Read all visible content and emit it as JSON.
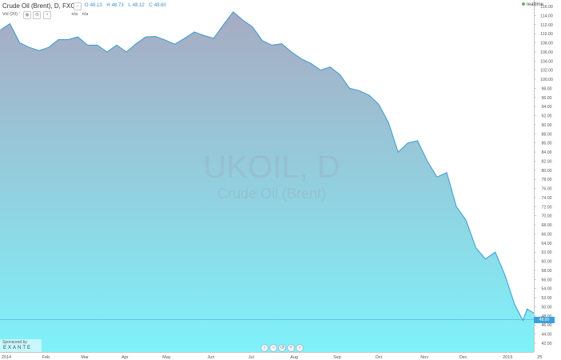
{
  "header": {
    "symbol_title": "Crude Oil (Brent), D, FXCM",
    "ohlc": [
      {
        "k": "O",
        "v": "48.13"
      },
      {
        "k": "H",
        "v": "48.73"
      },
      {
        "k": "L",
        "v": "48.12"
      },
      {
        "k": "C",
        "v": "48.60"
      }
    ],
    "volume_label": "Vol (20) ˇ",
    "volume_values": [
      "n/a",
      "n/a"
    ],
    "realtime_label": "realtime"
  },
  "watermark": {
    "symbol": "UKOIL, D",
    "name": "Crude Oil (Brent)"
  },
  "sponsor": {
    "line1": "Sponsored by",
    "line2": "EXANTE"
  },
  "zoom_controls": [
    "‹",
    "−",
    "↺",
    "+",
    "›"
  ],
  "last_price_label": "48.60",
  "colors": {
    "line": "#3a9ad1",
    "area_top": "#a7abc2",
    "area_bottom": "#7ff2fa",
    "last_price": "#3aa0da"
  },
  "chart_data": {
    "type": "area",
    "symbol": "UKOIL",
    "interval": "D",
    "x_ticks": [
      "2014",
      "Feb",
      "Mar",
      "Apr",
      "May",
      "Jun",
      "Jul",
      "Aug",
      "Sep",
      "Oct",
      "Nov",
      "Dec",
      "2015",
      "25"
    ],
    "y_ticks": [
      "42.00",
      "44.00",
      "46.00",
      "48.00",
      "50.00",
      "52.00",
      "54.00",
      "56.00",
      "58.00",
      "60.00",
      "62.00",
      "64.00",
      "66.00",
      "68.00",
      "70.00",
      "72.00",
      "74.00",
      "76.00",
      "78.00",
      "80.00",
      "82.00",
      "84.00",
      "86.00",
      "88.00",
      "90.00",
      "92.00",
      "94.00",
      "96.00",
      "98.00",
      "100.00",
      "102.00",
      "104.00",
      "106.00",
      "108.00",
      "110.00",
      "112.00",
      "114.00",
      "116.00"
    ],
    "ylim": [
      42,
      117
    ],
    "x": [
      "2014-01-02",
      "2014-01-08",
      "2014-01-15",
      "2014-01-22",
      "2014-01-29",
      "2014-02-05",
      "2014-02-12",
      "2014-02-19",
      "2014-02-26",
      "2014-03-05",
      "2014-03-12",
      "2014-03-19",
      "2014-03-26",
      "2014-04-02",
      "2014-04-09",
      "2014-04-16",
      "2014-04-23",
      "2014-04-30",
      "2014-05-07",
      "2014-05-14",
      "2014-05-21",
      "2014-05-28",
      "2014-06-04",
      "2014-06-11",
      "2014-06-18",
      "2014-06-25",
      "2014-07-02",
      "2014-07-09",
      "2014-07-16",
      "2014-07-23",
      "2014-07-30",
      "2014-08-06",
      "2014-08-13",
      "2014-08-20",
      "2014-08-27",
      "2014-09-03",
      "2014-09-10",
      "2014-09-17",
      "2014-09-24",
      "2014-10-01",
      "2014-10-08",
      "2014-10-15",
      "2014-10-22",
      "2014-10-29",
      "2014-11-05",
      "2014-11-12",
      "2014-11-19",
      "2014-11-26",
      "2014-12-03",
      "2014-12-10",
      "2014-12-17",
      "2014-12-24",
      "2014-12-31",
      "2015-01-07",
      "2015-01-13",
      "2015-01-16",
      "2015-01-21"
    ],
    "y": [
      111.0,
      112.2,
      108.0,
      107.0,
      106.3,
      107.0,
      108.7,
      108.7,
      109.3,
      107.5,
      107.5,
      106.0,
      107.5,
      106.0,
      107.8,
      109.3,
      109.4,
      108.6,
      107.7,
      109.0,
      110.4,
      109.6,
      109.0,
      112.0,
      114.8,
      113.0,
      111.5,
      108.5,
      107.5,
      107.8,
      106.0,
      104.5,
      103.5,
      102.0,
      102.7,
      101.0,
      98.0,
      97.5,
      96.5,
      94.5,
      90.5,
      84.0,
      86.0,
      86.5,
      82.0,
      78.5,
      79.5,
      72.0,
      69.0,
      63.0,
      60.5,
      62.0,
      57.0,
      50.5,
      47.0,
      49.5,
      48.6
    ]
  }
}
